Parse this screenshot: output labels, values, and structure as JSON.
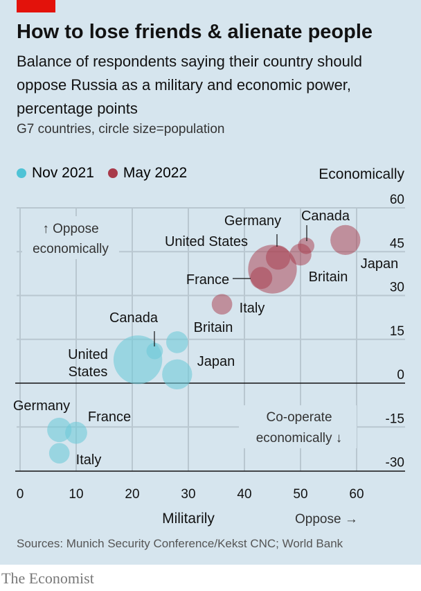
{
  "title": "How to lose friends & alienate people",
  "subtitle": "Balance of respondents saying their country should oppose Russia as a military and economic power, percentage points",
  "note": "G7 countries, circle size=population",
  "source": "Sources: Munich Security Conference/Kekst CNC; World Bank",
  "brand": "The Economist",
  "colors": {
    "nov": "#6fcad9",
    "may": "#a83a4a",
    "background": "#d6e5ee",
    "accent": "#e3120b"
  },
  "chart_data": {
    "type": "scatter",
    "title": "How to lose friends & alienate people",
    "xlabel": "Militarily",
    "xlabel_note": "Oppose →",
    "ylabel": "Economically",
    "xlim": [
      0,
      60
    ],
    "ylim": [
      -30,
      60
    ],
    "xticks": [
      "0",
      "10",
      "20",
      "30",
      "40",
      "50",
      "60"
    ],
    "yticks": [
      "60",
      "45",
      "30",
      "15",
      "0",
      "-15",
      "-30"
    ],
    "annotations": {
      "top": "↑ Oppose",
      "top2": "economically",
      "bottom": "Co-operate",
      "bottom2": "economically ↓"
    },
    "legend": [
      "Nov 2021",
      "May 2022"
    ],
    "series": [
      {
        "name": "Nov 2021",
        "points": [
          {
            "country": "United States",
            "x": 21,
            "y": 8,
            "pop": 332
          },
          {
            "country": "Canada",
            "x": 24,
            "y": 11,
            "pop": 38
          },
          {
            "country": "Britain",
            "x": 28,
            "y": 14,
            "pop": 67
          },
          {
            "country": "Japan",
            "x": 28,
            "y": 3,
            "pop": 126
          },
          {
            "country": "Germany",
            "x": 7,
            "y": -16,
            "pop": 83
          },
          {
            "country": "France",
            "x": 10,
            "y": -17,
            "pop": 68
          },
          {
            "country": "Italy",
            "x": 7,
            "y": -24,
            "pop": 59
          }
        ]
      },
      {
        "name": "May 2022",
        "points": [
          {
            "country": "United States",
            "x": 45,
            "y": 39,
            "pop": 332
          },
          {
            "country": "Germany",
            "x": 46,
            "y": 43,
            "pop": 83
          },
          {
            "country": "Canada",
            "x": 51,
            "y": 47,
            "pop": 38
          },
          {
            "country": "Britain",
            "x": 50,
            "y": 44,
            "pop": 67
          },
          {
            "country": "Japan",
            "x": 58,
            "y": 49,
            "pop": 126
          },
          {
            "country": "France",
            "x": 43,
            "y": 36,
            "pop": 68
          },
          {
            "country": "Italy",
            "x": 36,
            "y": 27,
            "pop": 59
          }
        ]
      }
    ]
  }
}
